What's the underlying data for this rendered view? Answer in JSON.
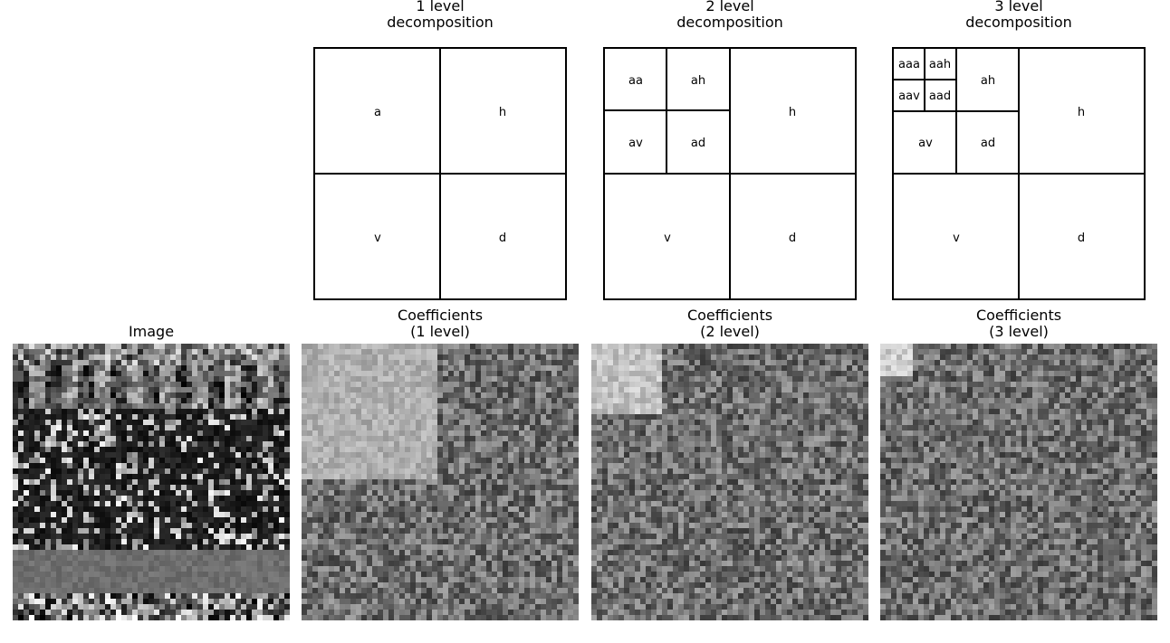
{
  "titles": {
    "level1": "1 level\ndecomposition",
    "level2": "2 level\ndecomposition",
    "level3": "3 level\ndecomposition",
    "image": "Image",
    "coef1": "Coefficients\n(1 level)",
    "coef2": "Coefficients\n(2 level)",
    "coef3": "Coefficients\n(3 level)"
  },
  "diagrams": {
    "level1": {
      "labels": {
        "a": "a",
        "h": "h",
        "v": "v",
        "d": "d"
      }
    },
    "level2": {
      "labels": {
        "aa": "aa",
        "ah_small": "ah",
        "av": "av",
        "ad": "ad",
        "h": "h",
        "v": "v",
        "d": "d"
      }
    },
    "level3": {
      "labels": {
        "aaa": "aaa",
        "aah": "aah",
        "aav": "aav",
        "aad": "aad",
        "ah": "ah",
        "av": "av",
        "ad": "ad",
        "h": "h",
        "v": "v",
        "d": "d"
      }
    }
  }
}
